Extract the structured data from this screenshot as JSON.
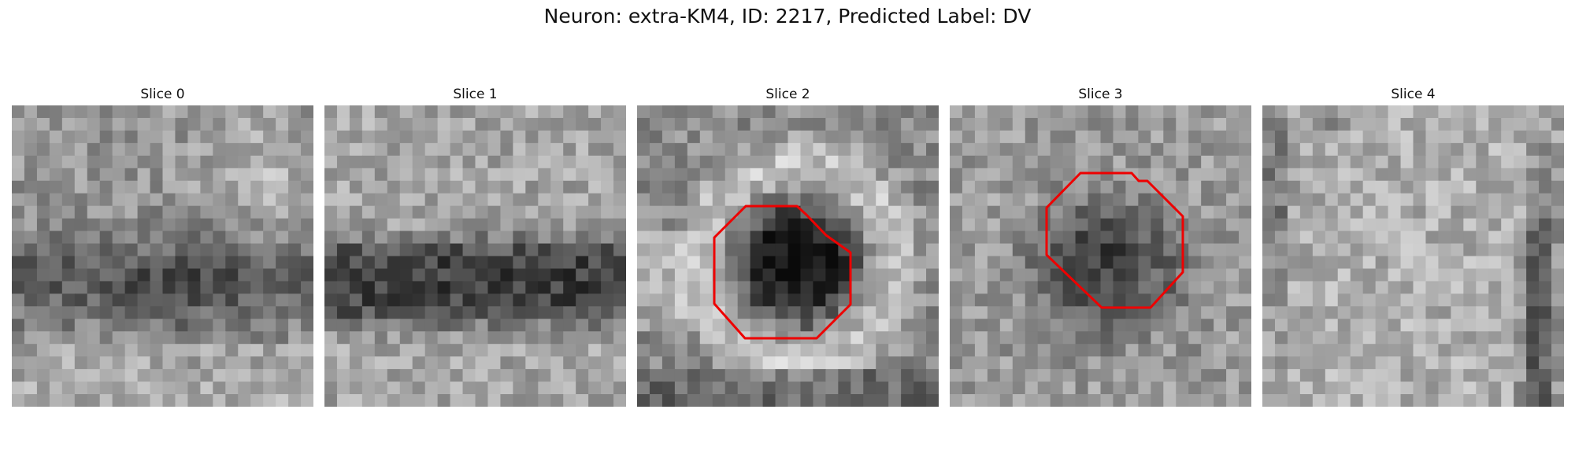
{
  "figure": {
    "title": "Neuron: extra-KM4, ID: 2217, Predicted Label: DV",
    "colormap": "grayscale",
    "contour_color": "#ee0000"
  },
  "slices": [
    {
      "title": "Slice 0",
      "has_contour": false
    },
    {
      "title": "Slice 1",
      "has_contour": false
    },
    {
      "title": "Slice 2",
      "has_contour": true
    },
    {
      "title": "Slice 3",
      "has_contour": true
    },
    {
      "title": "Slice 4",
      "has_contour": false
    }
  ]
}
